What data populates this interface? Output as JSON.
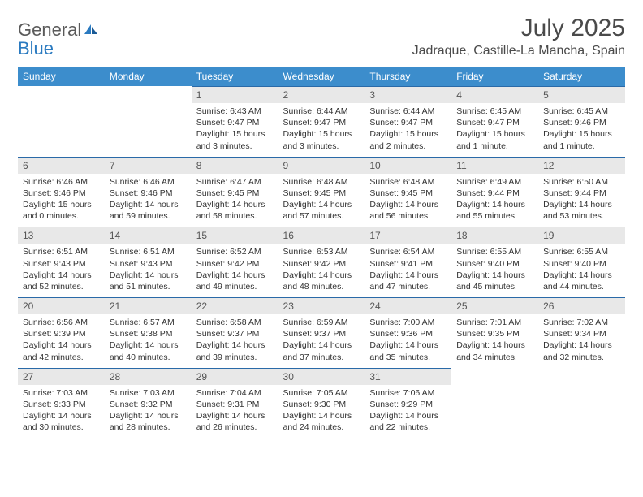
{
  "brand": {
    "part1": "General",
    "part2": "Blue"
  },
  "title": "July 2025",
  "location": "Jadraque, Castille-La Mancha, Spain",
  "colors": {
    "header_bg": "#3c8dcc",
    "header_text": "#ffffff",
    "daynum_bg": "#e8e8e8",
    "daynum_border": "#2a6aa8",
    "body_text": "#333333",
    "brand_gray": "#5a5a5a",
    "brand_blue": "#2a7ac0"
  },
  "weekdays": [
    "Sunday",
    "Monday",
    "Tuesday",
    "Wednesday",
    "Thursday",
    "Friday",
    "Saturday"
  ],
  "weeks": [
    [
      null,
      null,
      {
        "n": "1",
        "sr": "Sunrise: 6:43 AM",
        "ss": "Sunset: 9:47 PM",
        "d1": "Daylight: 15 hours",
        "d2": "and 3 minutes."
      },
      {
        "n": "2",
        "sr": "Sunrise: 6:44 AM",
        "ss": "Sunset: 9:47 PM",
        "d1": "Daylight: 15 hours",
        "d2": "and 3 minutes."
      },
      {
        "n": "3",
        "sr": "Sunrise: 6:44 AM",
        "ss": "Sunset: 9:47 PM",
        "d1": "Daylight: 15 hours",
        "d2": "and 2 minutes."
      },
      {
        "n": "4",
        "sr": "Sunrise: 6:45 AM",
        "ss": "Sunset: 9:47 PM",
        "d1": "Daylight: 15 hours",
        "d2": "and 1 minute."
      },
      {
        "n": "5",
        "sr": "Sunrise: 6:45 AM",
        "ss": "Sunset: 9:46 PM",
        "d1": "Daylight: 15 hours",
        "d2": "and 1 minute."
      }
    ],
    [
      {
        "n": "6",
        "sr": "Sunrise: 6:46 AM",
        "ss": "Sunset: 9:46 PM",
        "d1": "Daylight: 15 hours",
        "d2": "and 0 minutes."
      },
      {
        "n": "7",
        "sr": "Sunrise: 6:46 AM",
        "ss": "Sunset: 9:46 PM",
        "d1": "Daylight: 14 hours",
        "d2": "and 59 minutes."
      },
      {
        "n": "8",
        "sr": "Sunrise: 6:47 AM",
        "ss": "Sunset: 9:45 PM",
        "d1": "Daylight: 14 hours",
        "d2": "and 58 minutes."
      },
      {
        "n": "9",
        "sr": "Sunrise: 6:48 AM",
        "ss": "Sunset: 9:45 PM",
        "d1": "Daylight: 14 hours",
        "d2": "and 57 minutes."
      },
      {
        "n": "10",
        "sr": "Sunrise: 6:48 AM",
        "ss": "Sunset: 9:45 PM",
        "d1": "Daylight: 14 hours",
        "d2": "and 56 minutes."
      },
      {
        "n": "11",
        "sr": "Sunrise: 6:49 AM",
        "ss": "Sunset: 9:44 PM",
        "d1": "Daylight: 14 hours",
        "d2": "and 55 minutes."
      },
      {
        "n": "12",
        "sr": "Sunrise: 6:50 AM",
        "ss": "Sunset: 9:44 PM",
        "d1": "Daylight: 14 hours",
        "d2": "and 53 minutes."
      }
    ],
    [
      {
        "n": "13",
        "sr": "Sunrise: 6:51 AM",
        "ss": "Sunset: 9:43 PM",
        "d1": "Daylight: 14 hours",
        "d2": "and 52 minutes."
      },
      {
        "n": "14",
        "sr": "Sunrise: 6:51 AM",
        "ss": "Sunset: 9:43 PM",
        "d1": "Daylight: 14 hours",
        "d2": "and 51 minutes."
      },
      {
        "n": "15",
        "sr": "Sunrise: 6:52 AM",
        "ss": "Sunset: 9:42 PM",
        "d1": "Daylight: 14 hours",
        "d2": "and 49 minutes."
      },
      {
        "n": "16",
        "sr": "Sunrise: 6:53 AM",
        "ss": "Sunset: 9:42 PM",
        "d1": "Daylight: 14 hours",
        "d2": "and 48 minutes."
      },
      {
        "n": "17",
        "sr": "Sunrise: 6:54 AM",
        "ss": "Sunset: 9:41 PM",
        "d1": "Daylight: 14 hours",
        "d2": "and 47 minutes."
      },
      {
        "n": "18",
        "sr": "Sunrise: 6:55 AM",
        "ss": "Sunset: 9:40 PM",
        "d1": "Daylight: 14 hours",
        "d2": "and 45 minutes."
      },
      {
        "n": "19",
        "sr": "Sunrise: 6:55 AM",
        "ss": "Sunset: 9:40 PM",
        "d1": "Daylight: 14 hours",
        "d2": "and 44 minutes."
      }
    ],
    [
      {
        "n": "20",
        "sr": "Sunrise: 6:56 AM",
        "ss": "Sunset: 9:39 PM",
        "d1": "Daylight: 14 hours",
        "d2": "and 42 minutes."
      },
      {
        "n": "21",
        "sr": "Sunrise: 6:57 AM",
        "ss": "Sunset: 9:38 PM",
        "d1": "Daylight: 14 hours",
        "d2": "and 40 minutes."
      },
      {
        "n": "22",
        "sr": "Sunrise: 6:58 AM",
        "ss": "Sunset: 9:37 PM",
        "d1": "Daylight: 14 hours",
        "d2": "and 39 minutes."
      },
      {
        "n": "23",
        "sr": "Sunrise: 6:59 AM",
        "ss": "Sunset: 9:37 PM",
        "d1": "Daylight: 14 hours",
        "d2": "and 37 minutes."
      },
      {
        "n": "24",
        "sr": "Sunrise: 7:00 AM",
        "ss": "Sunset: 9:36 PM",
        "d1": "Daylight: 14 hours",
        "d2": "and 35 minutes."
      },
      {
        "n": "25",
        "sr": "Sunrise: 7:01 AM",
        "ss": "Sunset: 9:35 PM",
        "d1": "Daylight: 14 hours",
        "d2": "and 34 minutes."
      },
      {
        "n": "26",
        "sr": "Sunrise: 7:02 AM",
        "ss": "Sunset: 9:34 PM",
        "d1": "Daylight: 14 hours",
        "d2": "and 32 minutes."
      }
    ],
    [
      {
        "n": "27",
        "sr": "Sunrise: 7:03 AM",
        "ss": "Sunset: 9:33 PM",
        "d1": "Daylight: 14 hours",
        "d2": "and 30 minutes."
      },
      {
        "n": "28",
        "sr": "Sunrise: 7:03 AM",
        "ss": "Sunset: 9:32 PM",
        "d1": "Daylight: 14 hours",
        "d2": "and 28 minutes."
      },
      {
        "n": "29",
        "sr": "Sunrise: 7:04 AM",
        "ss": "Sunset: 9:31 PM",
        "d1": "Daylight: 14 hours",
        "d2": "and 26 minutes."
      },
      {
        "n": "30",
        "sr": "Sunrise: 7:05 AM",
        "ss": "Sunset: 9:30 PM",
        "d1": "Daylight: 14 hours",
        "d2": "and 24 minutes."
      },
      {
        "n": "31",
        "sr": "Sunrise: 7:06 AM",
        "ss": "Sunset: 9:29 PM",
        "d1": "Daylight: 14 hours",
        "d2": "and 22 minutes."
      },
      null,
      null
    ]
  ]
}
